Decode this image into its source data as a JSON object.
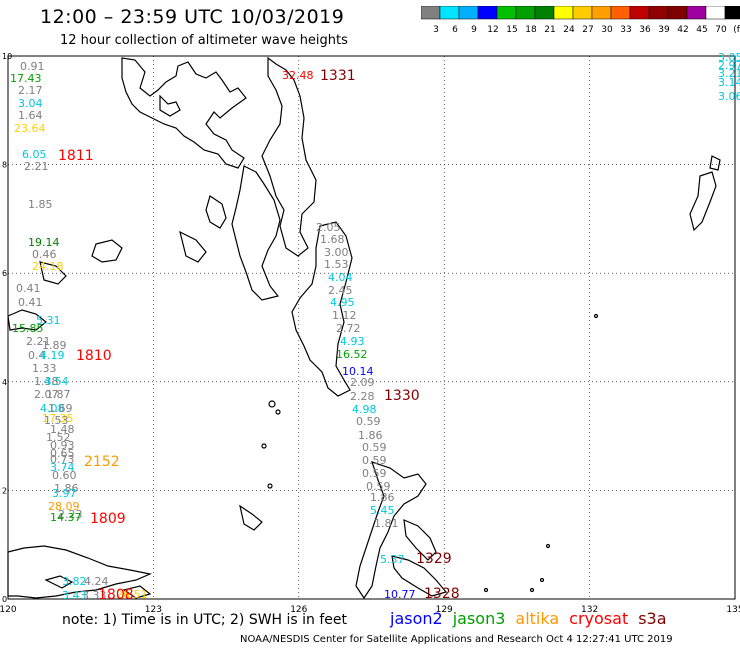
{
  "header": {
    "title": "12:00 – 23:59 UTC 10/03/2019",
    "subtitle": "12 hour collection of altimeter wave heights"
  },
  "colorbar": {
    "colors": [
      "#808080",
      "#00e5ff",
      "#00b0ff",
      "#0000ff",
      "#00c000",
      "#00a000",
      "#008000",
      "#ffff00",
      "#ffcc00",
      "#ffa000",
      "#ff6000",
      "#c00000",
      "#900000",
      "#800000",
      "#a000a0",
      "#ffffff",
      "#000000"
    ],
    "labels": [
      "3",
      "6",
      "9",
      "12",
      "15",
      "18",
      "21",
      "24",
      "27",
      "30",
      "33",
      "36",
      "39",
      "42",
      "45",
      "70",
      "(ft)"
    ]
  },
  "axes": {
    "x_ticks": [
      "120",
      "123",
      "126",
      "129",
      "132",
      "135"
    ],
    "y_ticks": [
      "0",
      "2",
      "4",
      "6",
      "8",
      "10"
    ]
  },
  "tracks": [
    {
      "id": "1811",
      "color": "#ff0000",
      "points": [
        {
          "v": "0.91",
          "c": "#808080"
        },
        {
          "v": "17.43",
          "c": "#00a000"
        },
        {
          "v": "2.17",
          "c": "#808080"
        },
        {
          "v": "3.04",
          "c": "#00c8e0"
        },
        {
          "v": "1.64",
          "c": "#808080"
        },
        {
          "v": "23.64",
          "c": "#ffd000"
        },
        {
          "v": "6.05",
          "c": "#00c8e0"
        },
        {
          "v": "2.21",
          "c": "#808080"
        },
        {
          "v": "1.85",
          "c": "#808080"
        },
        {
          "v": "19.14",
          "c": "#008000"
        },
        {
          "v": "0.46",
          "c": "#808080"
        },
        {
          "v": "24.18",
          "c": "#ffd000"
        }
      ]
    },
    {
      "id": "1810",
      "color": "#ff0000",
      "points": [
        {
          "v": "0.41",
          "c": "#808080"
        },
        {
          "v": "0.41",
          "c": "#808080"
        },
        {
          "v": "5.31",
          "c": "#00c8e0"
        },
        {
          "v": "15.85",
          "c": "#00a000"
        },
        {
          "v": "2.21",
          "c": "#808080"
        },
        {
          "v": "1.89",
          "c": "#808080"
        },
        {
          "v": "0.4",
          "c": "#808080"
        },
        {
          "v": "4.19",
          "c": "#00c8e0"
        },
        {
          "v": "1.33",
          "c": "#808080"
        },
        {
          "v": "1.38",
          "c": "#808080"
        },
        {
          "v": "4.54",
          "c": "#00c8e0"
        }
      ]
    },
    {
      "id": "2152",
      "color": "#ff9900",
      "points": [
        {
          "v": "2.07",
          "c": "#808080"
        },
        {
          "v": "1.87",
          "c": "#808080"
        },
        {
          "v": "4.08",
          "c": "#00c8e0"
        },
        {
          "v": "1.69",
          "c": "#808080"
        },
        {
          "v": "17.35",
          "c": "#ffd000"
        },
        {
          "v": "1.53",
          "c": "#808080"
        },
        {
          "v": "1.48",
          "c": "#808080"
        },
        {
          "v": "1.52",
          "c": "#808080"
        },
        {
          "v": "0.93",
          "c": "#808080"
        },
        {
          "v": "0.65",
          "c": "#808080"
        },
        {
          "v": "0.73",
          "c": "#808080"
        },
        {
          "v": "3.74",
          "c": "#00c8e0"
        },
        {
          "v": "0.60",
          "c": "#808080"
        },
        {
          "v": "1.86",
          "c": "#808080"
        },
        {
          "v": "3.97",
          "c": "#00c8e0"
        },
        {
          "v": "28.09",
          "c": "#ff9900"
        },
        {
          "v": "2.23",
          "c": "#808080"
        },
        {
          "v": "14.37",
          "c": "#00a000"
        }
      ]
    },
    {
      "id": "1809",
      "color": "#ff0000",
      "points": []
    },
    {
      "id": "1808",
      "color": "#ff0000",
      "points": [
        {
          "v": "3.82",
          "c": "#00c8e0"
        },
        {
          "v": "4.24",
          "c": "#808080"
        },
        {
          "v": "3.43",
          "c": "#00c8e0"
        },
        {
          "v": "3.33",
          "c": "#808080"
        },
        {
          "v": "26.51",
          "c": "#ffd000"
        }
      ]
    },
    {
      "id": "1331",
      "color": "#800000",
      "points": [
        {
          "v": "32.48",
          "c": "#ff0000"
        }
      ]
    },
    {
      "id": "1330",
      "color": "#800000",
      "points": [
        {
          "v": "2.05",
          "c": "#808080"
        },
        {
          "v": "1.68",
          "c": "#808080"
        },
        {
          "v": "3.00",
          "c": "#808080"
        },
        {
          "v": "1.53",
          "c": "#808080"
        },
        {
          "v": "4.04",
          "c": "#00c8e0"
        },
        {
          "v": "2.45",
          "c": "#808080"
        },
        {
          "v": "4.95",
          "c": "#00c8e0"
        },
        {
          "v": "1.12",
          "c": "#808080"
        },
        {
          "v": "2.72",
          "c": "#808080"
        },
        {
          "v": "4.93",
          "c": "#00c8e0"
        },
        {
          "v": "16.52",
          "c": "#00a000"
        },
        {
          "v": "10.14",
          "c": "#0000ff"
        },
        {
          "v": "2.09",
          "c": "#808080"
        },
        {
          "v": "2.28",
          "c": "#808080"
        },
        {
          "v": "4.98",
          "c": "#00c8e0"
        },
        {
          "v": "0.59",
          "c": "#808080"
        },
        {
          "v": "1.86",
          "c": "#808080"
        },
        {
          "v": "0.59",
          "c": "#808080"
        },
        {
          "v": "0.59",
          "c": "#808080"
        },
        {
          "v": "0.59",
          "c": "#808080"
        },
        {
          "v": "0.59",
          "c": "#808080"
        },
        {
          "v": "1.86",
          "c": "#808080"
        },
        {
          "v": "5.45",
          "c": "#00c8e0"
        },
        {
          "v": "1.81",
          "c": "#808080"
        }
      ]
    },
    {
      "id": "1329",
      "color": "#800000",
      "points": [
        {
          "v": "5.37",
          "c": "#00c8e0"
        }
      ]
    },
    {
      "id": "1328",
      "color": "#800000",
      "points": [
        {
          "v": "10.77",
          "c": "#0000ff"
        }
      ]
    },
    {
      "id": "east",
      "color": "#00c8e0",
      "points": [
        {
          "v": "3.05",
          "c": "#00c8e0"
        },
        {
          "v": "2.97",
          "c": "#00c8e0"
        },
        {
          "v": "3.21",
          "c": "#00c8e0"
        },
        {
          "v": "3.14",
          "c": "#00c8e0"
        },
        {
          "v": "3.06",
          "c": "#00c8e0"
        }
      ]
    }
  ],
  "note": "note: 1) Time is in UTC; 2) SWH is in feet",
  "legend": [
    {
      "label": "jason2",
      "color": "#0000ff"
    },
    {
      "label": "jason3",
      "color": "#00a000"
    },
    {
      "label": "altika",
      "color": "#ff9900"
    },
    {
      "label": "cryosat",
      "color": "#ff0000"
    },
    {
      "label": "s3a",
      "color": "#800000"
    }
  ],
  "footer": "NOAA/NESDIS Center for Satellite Applications and Research    Oct  4 12:27:41 UTC 2019"
}
